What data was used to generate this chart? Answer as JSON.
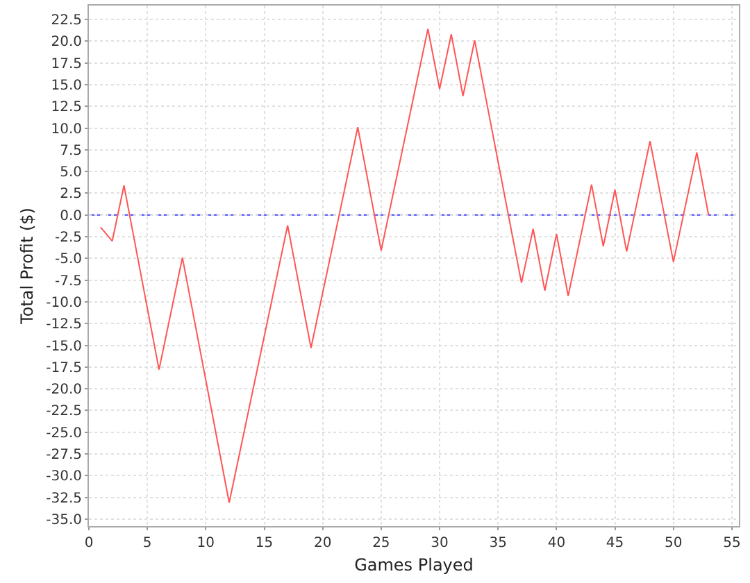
{
  "chart_data": {
    "type": "line",
    "xlabel": "Games Played",
    "ylabel": "Total Profit ($)",
    "x": [
      1,
      2,
      3,
      6,
      8,
      12,
      17,
      19,
      23,
      25,
      29,
      30,
      31,
      32,
      33,
      37,
      38,
      39,
      40,
      41,
      43,
      44,
      45,
      46,
      48,
      50,
      52,
      53
    ],
    "values": [
      -1.4,
      -3.0,
      3.4,
      -17.8,
      -4.9,
      -33.1,
      -1.2,
      -15.3,
      10.1,
      -4.1,
      21.4,
      14.5,
      20.8,
      13.7,
      20.1,
      -7.8,
      -1.6,
      -8.7,
      -2.2,
      -9.3,
      3.5,
      -3.6,
      2.9,
      -4.2,
      8.5,
      -5.4,
      7.2,
      0.0
    ],
    "color": "#ff5555",
    "xlim": [
      0,
      55.6
    ],
    "ylim": [
      -35.8,
      24.1
    ],
    "xticks": [
      0,
      5,
      10,
      15,
      20,
      25,
      30,
      35,
      40,
      45,
      50,
      55
    ],
    "yticks": [
      {
        "value": -35,
        "label": "-35.0"
      },
      -32.5,
      {
        "value": -30,
        "label": "-30.0"
      },
      -27.5,
      {
        "value": -25,
        "label": "-25.0"
      },
      -22.5,
      {
        "value": -20,
        "label": "-20.0"
      },
      -17.5,
      {
        "value": -15,
        "label": "-15.0"
      },
      -12.5,
      {
        "value": -10,
        "label": "-10.0"
      },
      -7.5,
      {
        "value": -5,
        "label": "-5.0"
      },
      -2.5,
      {
        "value": 0,
        "label": "0.0"
      },
      2.5,
      {
        "value": 5,
        "label": "5.0"
      },
      7.5,
      {
        "value": 10,
        "label": "10.0"
      },
      12.5,
      {
        "value": 15,
        "label": "15.0"
      },
      17.5,
      {
        "value": 20,
        "label": "20.0"
      },
      22.5
    ],
    "ref_lines": [
      {
        "axis": "y",
        "value": 0,
        "color": "#4444ff",
        "line_style": "dashed"
      }
    ],
    "grid": true,
    "marker": "none",
    "line_style": "solid"
  }
}
